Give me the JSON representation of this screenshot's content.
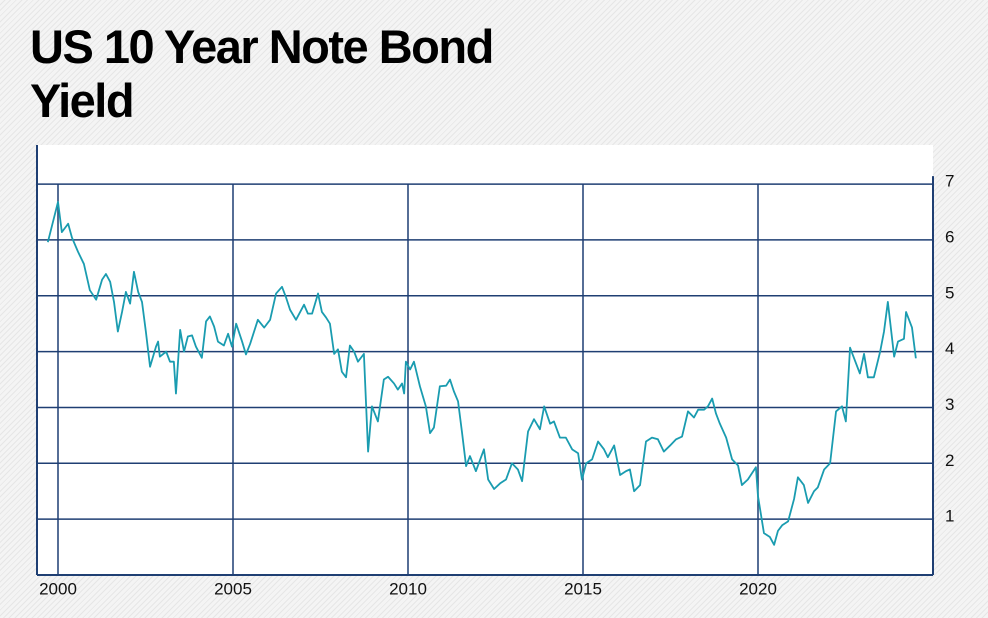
{
  "chart_data": {
    "type": "line",
    "title": "US 10 Year Note Bond Yield",
    "xlim": [
      1999.4,
      2025
    ],
    "xticks": [
      2000,
      2005,
      2010,
      2015,
      2020
    ],
    "ylim": [
      0,
      7.7
    ],
    "yticks": [
      1,
      2,
      3,
      4,
      5,
      6,
      7
    ],
    "grid": true,
    "grid_color": "#1f3f73",
    "series": [
      {
        "color": "#1a9cb0",
        "x": [
          1999.71,
          2000.0,
          2000.11,
          2000.29,
          2000.4,
          2000.57,
          2000.74,
          2000.91,
          2001.09,
          2001.26,
          2001.37,
          2001.49,
          2001.6,
          2001.71,
          2001.83,
          2001.94,
          2002.06,
          2002.17,
          2002.29,
          2002.4,
          2002.51,
          2002.63,
          2002.8,
          2002.86,
          2002.91,
          2003.09,
          2003.2,
          2003.31,
          2003.37,
          2003.49,
          2003.6,
          2003.71,
          2003.83,
          2003.94,
          2004.11,
          2004.23,
          2004.34,
          2004.46,
          2004.57,
          2004.74,
          2004.86,
          2004.97,
          2005.09,
          2005.26,
          2005.37,
          2005.49,
          2005.71,
          2005.89,
          2006.06,
          2006.23,
          2006.4,
          2006.51,
          2006.63,
          2006.8,
          2007.03,
          2007.14,
          2007.26,
          2007.43,
          2007.54,
          2007.66,
          2007.77,
          2007.89,
          2008.0,
          2008.11,
          2008.23,
          2008.34,
          2008.46,
          2008.57,
          2008.74,
          2008.86,
          2008.97,
          2009.14,
          2009.31,
          2009.43,
          2009.6,
          2009.71,
          2009.83,
          2009.89,
          2009.94,
          2010.06,
          2010.17,
          2010.34,
          2010.51,
          2010.63,
          2010.74,
          2010.91,
          2011.09,
          2011.2,
          2011.31,
          2011.43,
          2011.54,
          2011.66,
          2011.77,
          2011.94,
          2012.17,
          2012.29,
          2012.46,
          2012.63,
          2012.8,
          2012.97,
          2013.14,
          2013.26,
          2013.43,
          2013.6,
          2013.77,
          2013.89,
          2014.06,
          2014.17,
          2014.34,
          2014.51,
          2014.69,
          2014.86,
          2014.97,
          2015.09,
          2015.26,
          2015.43,
          2015.6,
          2015.71,
          2015.89,
          2016.06,
          2016.23,
          2016.34,
          2016.46,
          2016.63,
          2016.8,
          2016.97,
          2017.14,
          2017.31,
          2017.49,
          2017.66,
          2017.83,
          2018.0,
          2018.17,
          2018.29,
          2018.46,
          2018.57,
          2018.69,
          2018.8,
          2018.91,
          2019.09,
          2019.26,
          2019.43,
          2019.54,
          2019.71,
          2019.94,
          2020.0,
          2020.17,
          2020.34,
          2020.46,
          2020.57,
          2020.69,
          2020.86,
          2021.03,
          2021.14,
          2021.31,
          2021.43,
          2021.6,
          2021.71,
          2021.89,
          2022.06,
          2022.23,
          2022.4,
          2022.51,
          2022.63,
          2022.8,
          2022.91,
          2023.03,
          2023.14,
          2023.31,
          2023.49,
          2023.6,
          2023.71,
          2023.89,
          2024.0,
          2024.17,
          2024.23,
          2024.4,
          2024.51
        ],
        "values": [
          5.96,
          6.68,
          6.14,
          6.29,
          6.04,
          5.79,
          5.57,
          5.1,
          4.93,
          5.29,
          5.39,
          5.25,
          4.89,
          4.36,
          4.71,
          5.07,
          4.86,
          5.43,
          5.07,
          4.89,
          4.36,
          3.73,
          4.09,
          4.18,
          3.91,
          4.0,
          3.82,
          3.82,
          3.25,
          4.39,
          4.0,
          4.27,
          4.29,
          4.09,
          3.89,
          4.54,
          4.63,
          4.45,
          4.18,
          4.11,
          4.32,
          4.09,
          4.5,
          4.18,
          3.95,
          4.14,
          4.57,
          4.43,
          4.57,
          5.04,
          5.16,
          4.98,
          4.75,
          4.57,
          4.84,
          4.68,
          4.68,
          5.04,
          4.71,
          4.61,
          4.5,
          3.96,
          4.04,
          3.64,
          3.54,
          4.11,
          4.0,
          3.82,
          3.96,
          2.21,
          3.02,
          2.75,
          3.5,
          3.55,
          3.43,
          3.32,
          3.43,
          3.25,
          3.82,
          3.68,
          3.82,
          3.38,
          3.02,
          2.54,
          2.64,
          3.38,
          3.39,
          3.5,
          3.29,
          3.11,
          2.57,
          1.95,
          2.13,
          1.86,
          2.25,
          1.71,
          1.54,
          1.64,
          1.71,
          2.0,
          1.89,
          1.68,
          2.57,
          2.79,
          2.61,
          3.02,
          2.71,
          2.75,
          2.46,
          2.46,
          2.25,
          2.18,
          1.71,
          2.0,
          2.07,
          2.39,
          2.25,
          2.11,
          2.32,
          1.79,
          1.86,
          1.89,
          1.5,
          1.61,
          2.39,
          2.46,
          2.43,
          2.21,
          2.32,
          2.43,
          2.48,
          2.93,
          2.82,
          2.96,
          2.96,
          3.02,
          3.16,
          2.89,
          2.71,
          2.46,
          2.07,
          1.96,
          1.61,
          1.71,
          1.93,
          1.41,
          0.75,
          0.68,
          0.54,
          0.79,
          0.89,
          0.96,
          1.36,
          1.75,
          1.61,
          1.29,
          1.5,
          1.57,
          1.89,
          2.0,
          2.93,
          3.02,
          2.75,
          4.07,
          3.79,
          3.61,
          3.96,
          3.54,
          3.54,
          4.0,
          4.36,
          4.89,
          3.91,
          4.18,
          4.23,
          4.71,
          4.43,
          3.88
        ]
      }
    ]
  }
}
